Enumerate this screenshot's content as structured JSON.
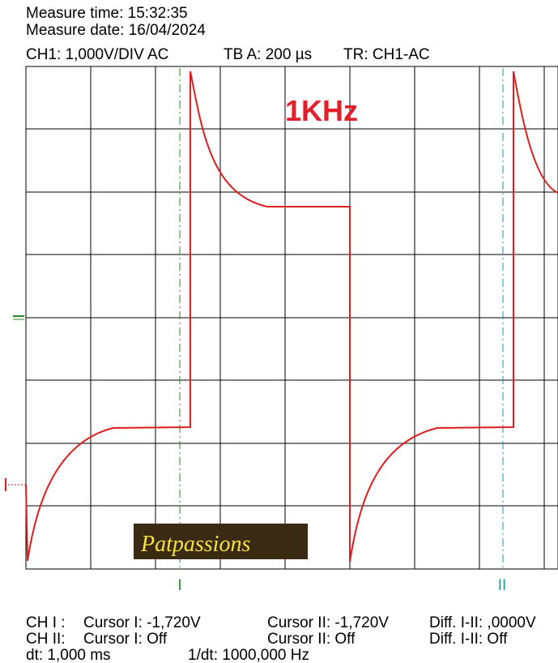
{
  "header": {
    "measure_time": "Measure time: 15:32:35",
    "measure_date": "Measure date: 16/04/2024",
    "channel": "CH1: 1,000V/DIV AC",
    "timebase": "TB A: 200 µs",
    "trigger": "TR: CH1-AC"
  },
  "annotation": "1KHz",
  "logo": "Patpassions",
  "cursor_labels": [
    "I",
    "II"
  ],
  "footer": {
    "rows": [
      [
        "CH I :",
        "Cursor I: -1,720V",
        "Cursor II: -1,720V",
        "Diff. I-II: ,0000V"
      ],
      [
        "CH II:",
        "Cursor I: Off",
        "Cursor II: Off",
        "Diff. I-II: Off"
      ],
      [
        "dt: 1,000 ms",
        "1/dt: 1000,000 Hz"
      ]
    ]
  }
}
